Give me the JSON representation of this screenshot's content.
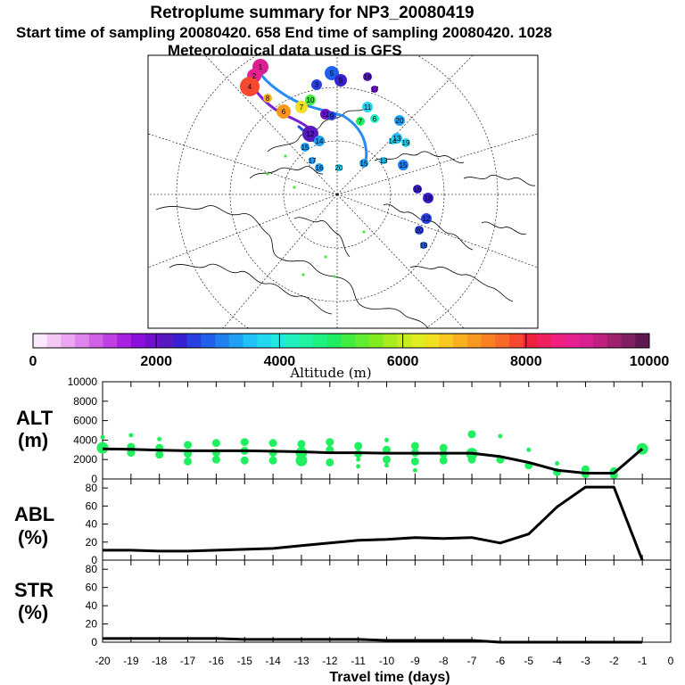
{
  "header": {
    "title": "Retroplume summary for NP3_20080419",
    "sampling": "Start time of sampling 20080420.   658     End time of sampling 20080420.  1028",
    "met": "Meteorological data used is GFS"
  },
  "colorbar": {
    "label": "Altitude (m)",
    "ticks": [
      "0",
      "2000",
      "4000",
      "6000",
      "8000",
      "10000"
    ],
    "colors": [
      "#fce8fc",
      "#f4c8f6",
      "#eaa6f0",
      "#de84ea",
      "#d060e6",
      "#c040e4",
      "#a820e0",
      "#8a10dc",
      "#6e10cc",
      "#5818c0",
      "#3820d0",
      "#2840e0",
      "#2060ec",
      "#2080f0",
      "#20a0f4",
      "#20c0f8",
      "#20d8f0",
      "#20e8e0",
      "#20f0c0",
      "#20f4a0",
      "#20f080",
      "#20ec60",
      "#40ec40",
      "#60ec30",
      "#80ec20",
      "#a8ec20",
      "#c8ec20",
      "#e0ec20",
      "#f0e020",
      "#f8c820",
      "#f8b020",
      "#f89820",
      "#f88020",
      "#f86828",
      "#f84830",
      "#f02040",
      "#f02060",
      "#f02080",
      "#e82090",
      "#d82090",
      "#c02080",
      "#a02070",
      "#802060",
      "#601850"
    ]
  },
  "panels": {
    "alt": {
      "label_top": "ALT",
      "label_bottom": "(m)"
    },
    "abl": {
      "label_top": "ABL",
      "label_bottom": "(%)"
    },
    "str": {
      "label_top": "STR",
      "label_bottom": "(%)"
    }
  },
  "xaxis": {
    "label": "Travel time (days)",
    "ticks": [
      "-20",
      "-19",
      "-18",
      "-17",
      "-16",
      "-15",
      "-14",
      "-13",
      "-12",
      "-11",
      "-10",
      "-9",
      "-8",
      "-7",
      "-6",
      "-5",
      "-4",
      "-3",
      "-2",
      "-1",
      "0"
    ]
  },
  "chart_data": [
    {
      "type": "line",
      "title": "ALT",
      "xlabel": "Travel time (days)",
      "ylabel": "(m)",
      "ylim": [
        0,
        10000
      ],
      "yticks": [
        "10000",
        "8000",
        "6000",
        "4000",
        "2000",
        "0"
      ],
      "x": [
        -20,
        -19,
        -18,
        -17,
        -16,
        -15,
        -14,
        -13,
        -12,
        -11,
        -10,
        -9,
        -8,
        -7,
        -6,
        -5,
        -4,
        -3,
        -2,
        -1
      ],
      "values": [
        3100,
        3050,
        2950,
        2900,
        2900,
        2900,
        2850,
        2800,
        2700,
        2700,
        2650,
        2650,
        2650,
        2650,
        2300,
        1700,
        900,
        600,
        600,
        3100
      ],
      "point_color": "#20f060",
      "points": [
        {
          "x": -20,
          "y": 4300,
          "s": 1
        },
        {
          "x": -20,
          "y": 3200,
          "s": 3
        },
        {
          "x": -19,
          "y": 4500,
          "s": 1
        },
        {
          "x": -19,
          "y": 3300,
          "s": 2
        },
        {
          "x": -19,
          "y": 2700,
          "s": 2
        },
        {
          "x": -18,
          "y": 4100,
          "s": 1
        },
        {
          "x": -18,
          "y": 3200,
          "s": 2
        },
        {
          "x": -18,
          "y": 2500,
          "s": 2
        },
        {
          "x": -17,
          "y": 3500,
          "s": 2
        },
        {
          "x": -17,
          "y": 2600,
          "s": 2
        },
        {
          "x": -17,
          "y": 1800,
          "s": 2
        },
        {
          "x": -16,
          "y": 3700,
          "s": 2
        },
        {
          "x": -16,
          "y": 2700,
          "s": 2
        },
        {
          "x": -16,
          "y": 2000,
          "s": 2
        },
        {
          "x": -15,
          "y": 3800,
          "s": 2
        },
        {
          "x": -15,
          "y": 2900,
          "s": 2
        },
        {
          "x": -15,
          "y": 1900,
          "s": 2
        },
        {
          "x": -14,
          "y": 3700,
          "s": 2
        },
        {
          "x": -14,
          "y": 2700,
          "s": 2
        },
        {
          "x": -14,
          "y": 1900,
          "s": 2
        },
        {
          "x": -13,
          "y": 3600,
          "s": 2
        },
        {
          "x": -13,
          "y": 2700,
          "s": 3
        },
        {
          "x": -13,
          "y": 1900,
          "s": 3
        },
        {
          "x": -12,
          "y": 3800,
          "s": 2
        },
        {
          "x": -12,
          "y": 3000,
          "s": 2
        },
        {
          "x": -12,
          "y": 1700,
          "s": 2
        },
        {
          "x": -11,
          "y": 3400,
          "s": 2
        },
        {
          "x": -11,
          "y": 2600,
          "s": 2
        },
        {
          "x": -11,
          "y": 2000,
          "s": 1
        },
        {
          "x": -11,
          "y": 1300,
          "s": 1
        },
        {
          "x": -10,
          "y": 4000,
          "s": 1
        },
        {
          "x": -10,
          "y": 3000,
          "s": 2
        },
        {
          "x": -10,
          "y": 2000,
          "s": 2
        },
        {
          "x": -10,
          "y": 1400,
          "s": 1
        },
        {
          "x": -9,
          "y": 3400,
          "s": 2
        },
        {
          "x": -9,
          "y": 2700,
          "s": 2
        },
        {
          "x": -9,
          "y": 1800,
          "s": 2
        },
        {
          "x": -9,
          "y": 900,
          "s": 1
        },
        {
          "x": -8,
          "y": 3200,
          "s": 2
        },
        {
          "x": -8,
          "y": 2600,
          "s": 2
        },
        {
          "x": -8,
          "y": 1900,
          "s": 2
        },
        {
          "x": -7,
          "y": 4600,
          "s": 2
        },
        {
          "x": -7,
          "y": 2600,
          "s": 3
        },
        {
          "x": -7,
          "y": 2000,
          "s": 2
        },
        {
          "x": -6,
          "y": 4400,
          "s": 1
        },
        {
          "x": -6,
          "y": 2000,
          "s": 2
        },
        {
          "x": -5,
          "y": 3000,
          "s": 1
        },
        {
          "x": -5,
          "y": 1400,
          "s": 2
        },
        {
          "x": -4,
          "y": 1600,
          "s": 1
        },
        {
          "x": -4,
          "y": 700,
          "s": 2
        },
        {
          "x": -3,
          "y": 1000,
          "s": 2
        },
        {
          "x": -3,
          "y": 500,
          "s": 2
        },
        {
          "x": -2,
          "y": 800,
          "s": 2
        },
        {
          "x": -2,
          "y": 400,
          "s": 2
        },
        {
          "x": -1,
          "y": 3100,
          "s": 3
        }
      ]
    },
    {
      "type": "line",
      "title": "ABL",
      "xlabel": "Travel time (days)",
      "ylabel": "(%)",
      "ylim": [
        0,
        90
      ],
      "yticks": [
        "80",
        "60",
        "40",
        "20",
        "0"
      ],
      "x": [
        -20,
        -19,
        -18,
        -17,
        -16,
        -15,
        -14,
        -13,
        -12,
        -11,
        -10,
        -9,
        -8,
        -7,
        -6,
        -5,
        -4,
        -3,
        -2,
        -1
      ],
      "values": [
        11,
        11,
        10,
        10,
        11,
        12,
        13,
        16,
        19,
        22,
        23,
        25,
        24,
        25,
        19,
        29,
        59,
        81,
        81,
        0
      ]
    },
    {
      "type": "line",
      "title": "STR",
      "xlabel": "Travel time (days)",
      "ylabel": "(%)",
      "ylim": [
        0,
        90
      ],
      "yticks": [
        "80",
        "60",
        "40",
        "20",
        "0"
      ],
      "x": [
        -20,
        -19,
        -18,
        -17,
        -16,
        -15,
        -14,
        -13,
        -12,
        -11,
        -10,
        -9,
        -8,
        -7,
        -6,
        -5,
        -4,
        -3,
        -2,
        -1
      ],
      "values": [
        4,
        4,
        4,
        4,
        4,
        3,
        3,
        3,
        3,
        3,
        2,
        2,
        2,
        2,
        0,
        0,
        0,
        0,
        0,
        0
      ]
    }
  ],
  "map": {
    "labels": [
      "1",
      "2",
      "3",
      "4",
      "5",
      "6",
      "7",
      "8",
      "9",
      "10",
      "11",
      "12",
      "13",
      "14",
      "15",
      "16",
      "17",
      "18",
      "19",
      "20"
    ]
  }
}
